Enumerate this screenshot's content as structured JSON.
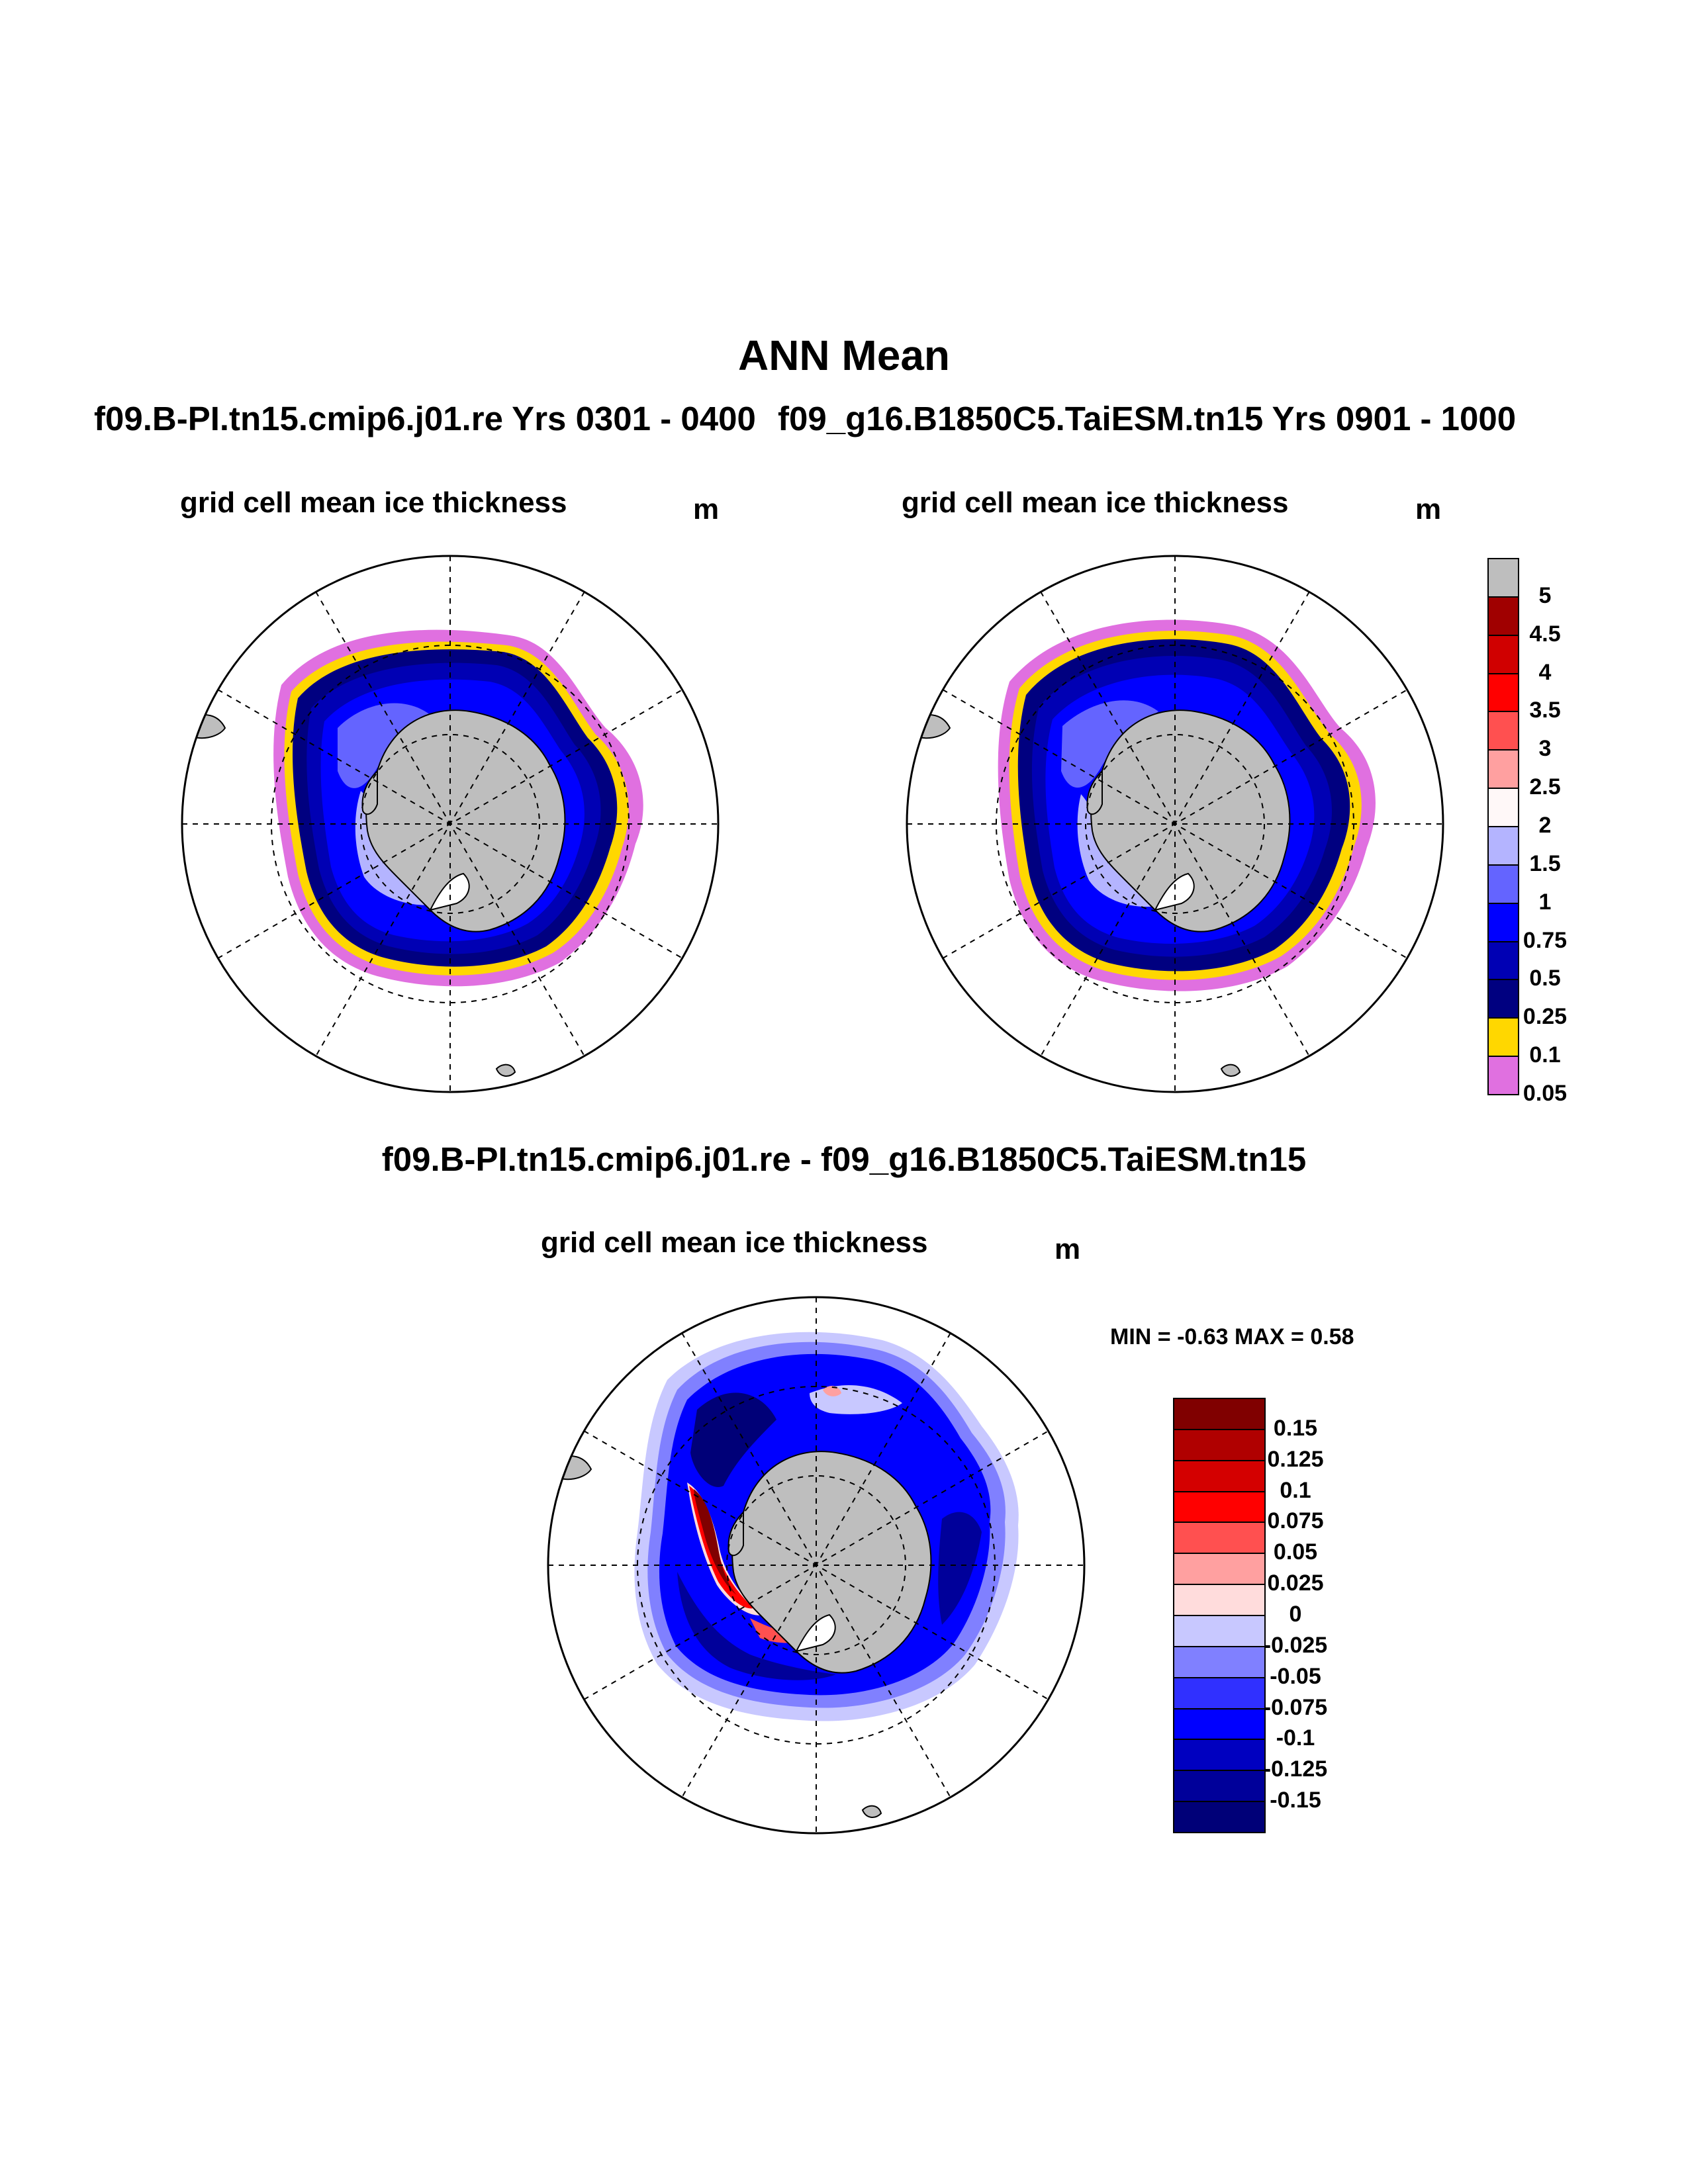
{
  "title": "ANN Mean",
  "panels": [
    {
      "run": "f09.B-PI.tn15.cmip6.j01.re  Yrs 0301 - 0400",
      "variable": "grid cell mean ice thickness",
      "units": "m"
    },
    {
      "run": "f09_g16.B1850C5.TaiESM.tn15  Yrs 0901 - 1000",
      "variable": "grid cell mean ice thickness",
      "units": "m"
    },
    {
      "run": "f09.B-PI.tn15.cmip6.j01.re - f09_g16.B1850C5.TaiESM.tn15",
      "variable": "grid cell mean ice thickness",
      "units": "m"
    }
  ],
  "diff_stats": {
    "text": "MIN =  -0.63 MAX =   0.58",
    "min": -0.63,
    "max": 0.58
  },
  "colorbar_main": {
    "labels": [
      "5",
      "4.5",
      "4",
      "3.5",
      "3",
      "2.5",
      "2",
      "1.5",
      "1",
      "0.75",
      "0.5",
      "0.25",
      "0.1",
      "0.05"
    ],
    "colors": [
      "#bebebe",
      "#a00000",
      "#d00000",
      "#ff0000",
      "#ff5050",
      "#ffa0a0",
      "#fff8f8",
      "#b4b4ff",
      "#6464ff",
      "#0000ff",
      "#0000b4",
      "#000080",
      "#ffd700",
      "#e070e0"
    ]
  },
  "colorbar_diff": {
    "labels": [
      "0.15",
      "0.125",
      "0.1",
      "0.075",
      "0.05",
      "0.025",
      "0",
      "-0.025",
      "-0.05",
      "-0.075",
      "-0.1",
      "-0.125",
      "-0.15"
    ],
    "colors": [
      "#800000",
      "#b00000",
      "#d40000",
      "#ff0000",
      "#ff5050",
      "#ffa0a0",
      "#ffdcdc",
      "#c8c8ff",
      "#8080ff",
      "#3030ff",
      "#0000ff",
      "#0000c0",
      "#00009a",
      "#000078"
    ]
  },
  "map_colors": {
    "land": "#bebebe",
    "ocean": "#ffffff"
  }
}
